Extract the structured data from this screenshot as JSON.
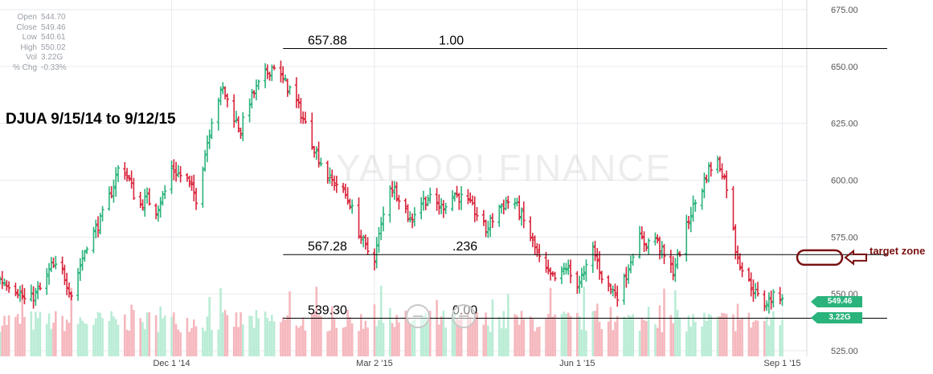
{
  "stats": {
    "items": [
      {
        "label": "Open",
        "value": "544.70"
      },
      {
        "label": "Close",
        "value": "549.46"
      },
      {
        "label": "Low",
        "value": "540.61"
      },
      {
        "label": "High",
        "value": "550.02"
      },
      {
        "label": "Vol",
        "value": "3.22G"
      },
      {
        "label": "% Chg",
        "value": "-0.33%"
      }
    ]
  },
  "watermark": "YAHOO! FINANCE",
  "badges": {
    "close": "549.46",
    "volume": "3.22G"
  },
  "colors": {
    "up": "#2ab37b",
    "down": "#d9243a",
    "vol_up": "#b9ecd5",
    "vol_down": "#f5b7bd",
    "annotation": "#7a1010"
  },
  "chart_data": {
    "type": "ohlc",
    "title": "DJUA 9/15/14 to 9/12/15",
    "ylim": [
      525,
      680
    ],
    "y_ticks": [
      525,
      550,
      575,
      600,
      625,
      650,
      675
    ],
    "y_tick_labels": [
      "525.00",
      "550.00",
      "575.00",
      "600.00",
      "625.00",
      "650.00",
      "675.00"
    ],
    "x_ticks": [
      {
        "day": 77,
        "label": "Dec 1 '14"
      },
      {
        "day": 168,
        "label": "Mar 2 '15"
      },
      {
        "day": 259,
        "label": "Jun 1 '15"
      },
      {
        "day": 351,
        "label": "Sep 1 '15"
      }
    ],
    "grid": true,
    "start_date": "2014-09-15",
    "end_date": "2015-09-12",
    "price_points": [
      [
        0,
        556
      ],
      [
        6,
        554
      ],
      [
        12,
        546
      ],
      [
        19,
        553
      ],
      [
        23,
        562
      ],
      [
        28,
        560
      ],
      [
        32,
        550
      ],
      [
        39,
        572
      ],
      [
        45,
        582
      ],
      [
        50,
        595
      ],
      [
        54,
        608
      ],
      [
        58,
        600
      ],
      [
        62,
        588
      ],
      [
        66,
        592
      ],
      [
        70,
        587
      ],
      [
        74,
        595
      ],
      [
        77,
        605
      ],
      [
        84,
        600
      ],
      [
        88,
        592
      ],
      [
        92,
        612
      ],
      [
        96,
        632
      ],
      [
        100,
        640
      ],
      [
        104,
        630
      ],
      [
        108,
        622
      ],
      [
        112,
        635
      ],
      [
        118,
        645
      ],
      [
        124,
        652
      ],
      [
        126,
        645
      ],
      [
        130,
        640
      ],
      [
        134,
        632
      ],
      [
        138,
        622
      ],
      [
        142,
        612
      ],
      [
        148,
        600
      ],
      [
        152,
        598
      ],
      [
        157,
        590
      ],
      [
        160,
        580
      ],
      [
        164,
        570
      ],
      [
        168,
        566
      ],
      [
        171,
        580
      ],
      [
        175,
        598
      ],
      [
        180,
        592
      ],
      [
        184,
        582
      ],
      [
        188,
        590
      ],
      [
        192,
        592
      ],
      [
        198,
        588
      ],
      [
        204,
        594
      ],
      [
        210,
        590
      ],
      [
        214,
        585
      ],
      [
        218,
        578
      ],
      [
        224,
        588
      ],
      [
        230,
        592
      ],
      [
        234,
        584
      ],
      [
        238,
        575
      ],
      [
        242,
        565
      ],
      [
        246,
        558
      ],
      [
        250,
        556
      ],
      [
        254,
        562
      ],
      [
        258,
        554
      ],
      [
        262,
        558
      ],
      [
        266,
        570
      ],
      [
        270,
        558
      ],
      [
        274,
        552
      ],
      [
        278,
        549
      ],
      [
        282,
        562
      ],
      [
        286,
        575
      ],
      [
        290,
        572
      ],
      [
        294,
        575
      ],
      [
        298,
        566
      ],
      [
        302,
        560
      ],
      [
        306,
        572
      ],
      [
        310,
        586
      ],
      [
        314,
        594
      ],
      [
        318,
        605
      ],
      [
        322,
        608
      ],
      [
        324,
        604
      ],
      [
        327,
        594
      ],
      [
        330,
        570
      ],
      [
        334,
        558
      ],
      [
        338,
        552
      ],
      [
        342,
        545
      ],
      [
        346,
        548
      ],
      [
        350,
        549.46
      ]
    ],
    "levels": [
      {
        "price": 657.88,
        "price_label": "657.88",
        "fib_label": "1.00",
        "from_day": 127
      },
      {
        "price": 567.28,
        "price_label": "567.28",
        "fib_label": ".236",
        "from_day": 127
      },
      {
        "price": 539.3,
        "price_label": "539.30",
        "fib_label": "0.00",
        "from_day": 127
      }
    ],
    "annotation": {
      "label": "target zone",
      "price": 566
    }
  }
}
